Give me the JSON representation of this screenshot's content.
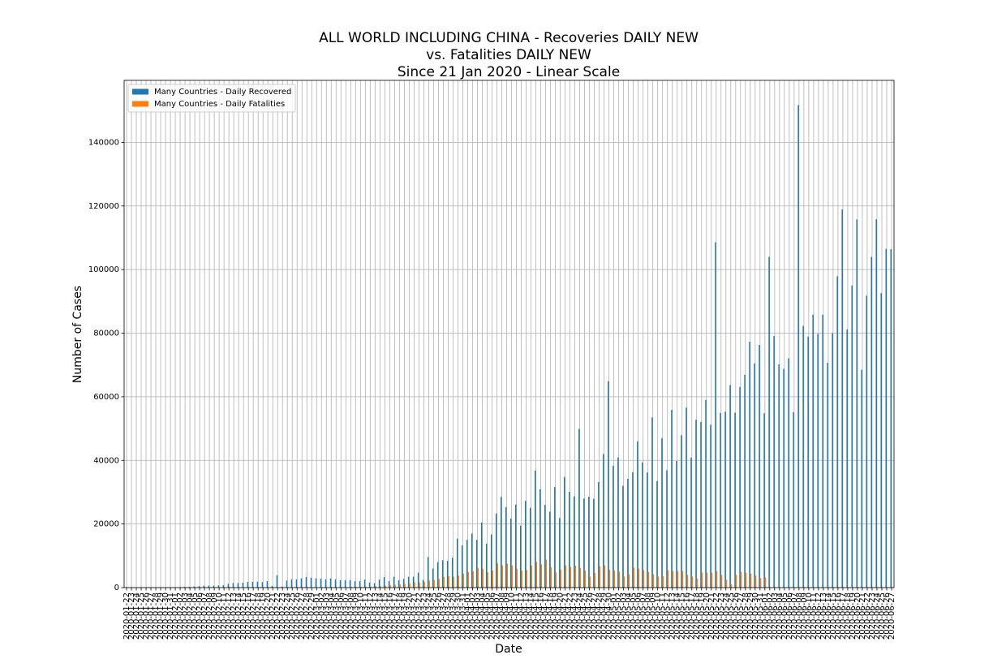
{
  "chart_data": {
    "type": "bar",
    "title": [
      "ALL WORLD INCLUDING CHINA - Recoveries DAILY NEW",
      "vs. Fatalities DAILY NEW",
      "Since 21 Jan 2020 - Linear Scale"
    ],
    "xlabel": "Date",
    "ylabel": "Number of Cases",
    "grid": true,
    "legend": "upper left",
    "ylim": [
      0,
      159500
    ],
    "yticks": [
      0,
      20000,
      40000,
      60000,
      80000,
      100000,
      120000,
      140000
    ],
    "categories": [
      "2020-01-22",
      "2020-01-23",
      "2020-01-24",
      "2020-01-25",
      "2020-01-26",
      "2020-01-27",
      "2020-01-28",
      "2020-01-29",
      "2020-01-30",
      "2020-01-31",
      "2020-02-01",
      "2020-02-02",
      "2020-02-03",
      "2020-02-04",
      "2020-02-05",
      "2020-02-06",
      "2020-02-07",
      "2020-02-08",
      "2020-02-09",
      "2020-02-10",
      "2020-02-11",
      "2020-02-12",
      "2020-02-13",
      "2020-02-14",
      "2020-02-15",
      "2020-02-16",
      "2020-02-17",
      "2020-02-18",
      "2020-02-19",
      "2020-02-20",
      "2020-02-21",
      "2020-02-22",
      "2020-02-23",
      "2020-02-24",
      "2020-02-25",
      "2020-02-26",
      "2020-02-27",
      "2020-02-28",
      "2020-02-29",
      "2020-03-01",
      "2020-03-02",
      "2020-03-03",
      "2020-03-04",
      "2020-03-05",
      "2020-03-06",
      "2020-03-07",
      "2020-03-08",
      "2020-03-09",
      "2020-03-10",
      "2020-03-11",
      "2020-03-12",
      "2020-03-13",
      "2020-03-14",
      "2020-03-15",
      "2020-03-16",
      "2020-03-17",
      "2020-03-18",
      "2020-03-19",
      "2020-03-20",
      "2020-03-21",
      "2020-03-22",
      "2020-03-23",
      "2020-03-24",
      "2020-03-25",
      "2020-03-26",
      "2020-03-27",
      "2020-03-28",
      "2020-03-29",
      "2020-03-30",
      "2020-03-31",
      "2020-04-01",
      "2020-04-02",
      "2020-04-03",
      "2020-04-04",
      "2020-04-05",
      "2020-04-06",
      "2020-04-07",
      "2020-04-08",
      "2020-04-09",
      "2020-04-10",
      "2020-04-11",
      "2020-04-12",
      "2020-04-13",
      "2020-04-14",
      "2020-04-15",
      "2020-04-16",
      "2020-04-17",
      "2020-04-18",
      "2020-04-19",
      "2020-04-20",
      "2020-04-21",
      "2020-04-22",
      "2020-04-23",
      "2020-04-24",
      "2020-04-25",
      "2020-04-26",
      "2020-04-27",
      "2020-04-28",
      "2020-04-29",
      "2020-04-30",
      "2020-05-01",
      "2020-05-02",
      "2020-05-03",
      "2020-05-04",
      "2020-05-05",
      "2020-05-06",
      "2020-05-07",
      "2020-05-08",
      "2020-05-09",
      "2020-05-10",
      "2020-05-11",
      "2020-05-12",
      "2020-05-13",
      "2020-05-14",
      "2020-05-15",
      "2020-05-16",
      "2020-05-17",
      "2020-05-18",
      "2020-05-19",
      "2020-05-20",
      "2020-05-21",
      "2020-05-22",
      "2020-05-23",
      "2020-05-24",
      "2020-05-25",
      "2020-05-26",
      "2020-05-27",
      "2020-05-28",
      "2020-05-29",
      "2020-05-30",
      "2020-05-31",
      "2020-06-01",
      "2020-06-02",
      "2020-06-03",
      "2020-06-04",
      "2020-06-05",
      "2020-06-06",
      "2020-06-07",
      "2020-06-08",
      "2020-06-09",
      "2020-06-10",
      "2020-06-11",
      "2020-06-12",
      "2020-06-13",
      "2020-06-14",
      "2020-06-15",
      "2020-06-16",
      "2020-06-17",
      "2020-06-18",
      "2020-06-19",
      "2020-06-20",
      "2020-06-21",
      "2020-06-22",
      "2020-06-23",
      "2020-06-24",
      "2020-06-25",
      "2020-06-26",
      "2020-06-27"
    ],
    "series": [
      {
        "name": "Many Countries - Daily Recovered",
        "color": "#1f77b4",
        "values": [
          0,
          2,
          6,
          3,
          12,
          13,
          43,
          12,
          45,
          54,
          84,
          150,
          227,
          233,
          367,
          434,
          604,
          635,
          586,
          706,
          784,
          1181,
          1435,
          1431,
          1554,
          1806,
          1823,
          1857,
          1753,
          2052,
          500,
          3900,
          300,
          2200,
          2600,
          2600,
          2900,
          3300,
          3100,
          2900,
          2800,
          2600,
          2900,
          2600,
          2300,
          2300,
          2300,
          2000,
          2000,
          2500,
          1600,
          1400,
          2500,
          3300,
          2000,
          3400,
          2300,
          2700,
          3400,
          3400,
          4700,
          2400,
          9600,
          6000,
          8000,
          8600,
          8400,
          9400,
          15400,
          13300,
          15000,
          17000,
          15000,
          20500,
          13800,
          16700,
          23300,
          28500,
          25300,
          21700,
          26100,
          19500,
          27300,
          25100,
          36800,
          30900,
          26000,
          23900,
          31600,
          21900,
          34800,
          30100,
          28700,
          49900,
          28000,
          28600,
          27900,
          33200,
          42000,
          64900,
          38300,
          40900,
          32000,
          34200,
          36300,
          46000,
          39400,
          36200,
          53500,
          33500,
          47000,
          36900,
          55900,
          39800,
          47900,
          56600,
          40900,
          52800,
          52100,
          59000,
          51200,
          108600,
          54900,
          55300,
          63700,
          55000,
          63100,
          66900,
          77300,
          70500,
          76300,
          54800,
          104000,
          79100,
          70200,
          68800,
          72100,
          55100,
          151700,
          82300,
          78900,
          85800,
          79800,
          85800,
          70700,
          80000,
          97900,
          118900,
          81200,
          95000,
          115800,
          68500,
          91800,
          104000,
          115800,
          92600,
          106500,
          106400
        ]
      },
      {
        "name": "Many Countries - Daily Fatalities",
        "color": "#ff7f0e",
        "values": [
          0,
          0,
          0,
          8,
          15,
          26,
          26,
          38,
          43,
          46,
          45,
          57,
          64,
          66,
          73,
          73,
          86,
          89,
          97,
          108,
          97,
          254,
          121,
          143,
          142,
          106,
          98,
          139,
          115,
          117,
          109,
          97,
          150,
          71,
          52,
          29,
          44,
          37,
          66,
          56,
          66,
          72,
          99,
          98,
          104,
          100,
          235,
          203,
          262,
          327,
          337,
          434,
          432,
          624,
          753,
          890,
          996,
          1165,
          1346,
          1713,
          1640,
          1787,
          2209,
          2416,
          2700,
          3369,
          3600,
          3437,
          3800,
          4400,
          4900,
          5100,
          6200,
          5900,
          4800,
          5400,
          7600,
          7000,
          7500,
          7000,
          5900,
          5400,
          5500,
          6900,
          8100,
          7300,
          8800,
          6400,
          4800,
          5600,
          7000,
          6500,
          6900,
          6200,
          5400,
          3500,
          4600,
          6700,
          7000,
          5600,
          5300,
          5000,
          3500,
          4200,
          6300,
          6000,
          5500,
          4900,
          4200,
          3500,
          3600,
          5500,
          5200,
          5200,
          5200,
          4000,
          3500,
          2800,
          4700,
          4700,
          4700,
          5200,
          4000,
          2500,
          1000,
          4000,
          4900,
          4700,
          4400,
          3800,
          3000,
          3200,
          null,
          null,
          null,
          null,
          null,
          null,
          null,
          null,
          null,
          null,
          null,
          null,
          null,
          null,
          null,
          null,
          null,
          null,
          null,
          null,
          null,
          null,
          null,
          null,
          null,
          null
        ]
      }
    ]
  }
}
